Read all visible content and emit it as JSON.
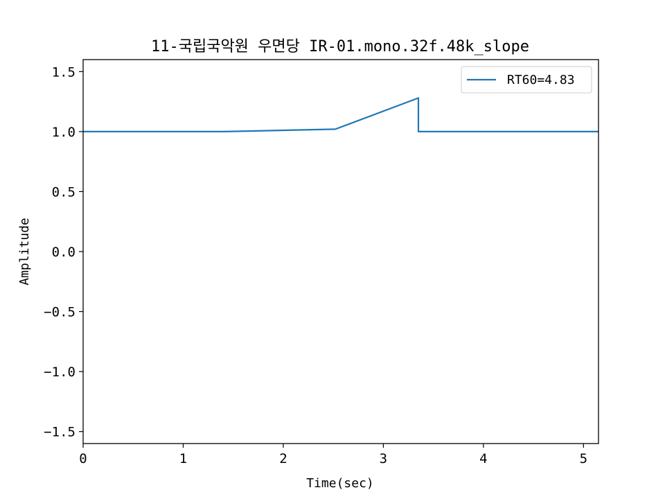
{
  "chart_data": {
    "type": "line",
    "title": "11-국립국악원 우면당 IR-01.mono.32f.48k_slope",
    "xlabel": "Time(sec)",
    "ylabel": "Amplitude",
    "xlim": [
      0,
      5.15
    ],
    "ylim": [
      -1.6,
      1.6
    ],
    "xticks": [
      0,
      1,
      2,
      3,
      4,
      5
    ],
    "xtick_labels": [
      "0",
      "1",
      "2",
      "3",
      "4",
      "5"
    ],
    "yticks": [
      -1.5,
      -1.0,
      -0.5,
      0.0,
      0.5,
      1.0,
      1.5
    ],
    "ytick_labels": [
      "−1.5",
      "−1.0",
      "−0.5",
      "0.0",
      "0.5",
      "1.0",
      "1.5"
    ],
    "grid": false,
    "legend_position": "top-right",
    "series": [
      {
        "name": "RT60=4.83",
        "color": "#1f77b4",
        "x": [
          0,
          1.4,
          2.52,
          3.35,
          3.35,
          5.15
        ],
        "y": [
          1.0,
          1.0,
          1.02,
          1.28,
          1.0,
          1.0
        ]
      }
    ]
  }
}
